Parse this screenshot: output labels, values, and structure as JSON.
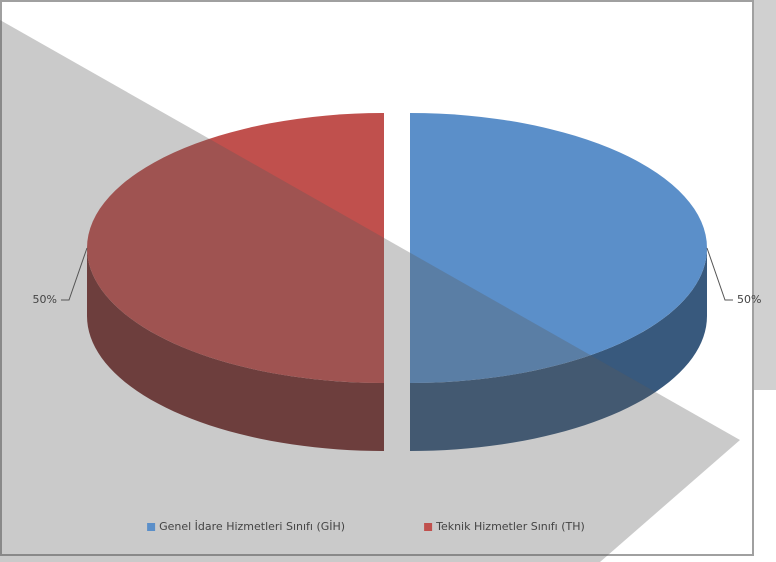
{
  "chart_data": {
    "type": "pie",
    "categories": [
      "Genel İdare Hizmetleri Sınıfı (GİH)",
      "Teknik Hizmetler Sınıfı (TH)"
    ],
    "values": [
      50,
      50
    ],
    "value_labels": [
      "50%",
      "50%"
    ],
    "colors": [
      "#5b8fc9",
      "#c0504d"
    ],
    "legend": "bottom"
  }
}
